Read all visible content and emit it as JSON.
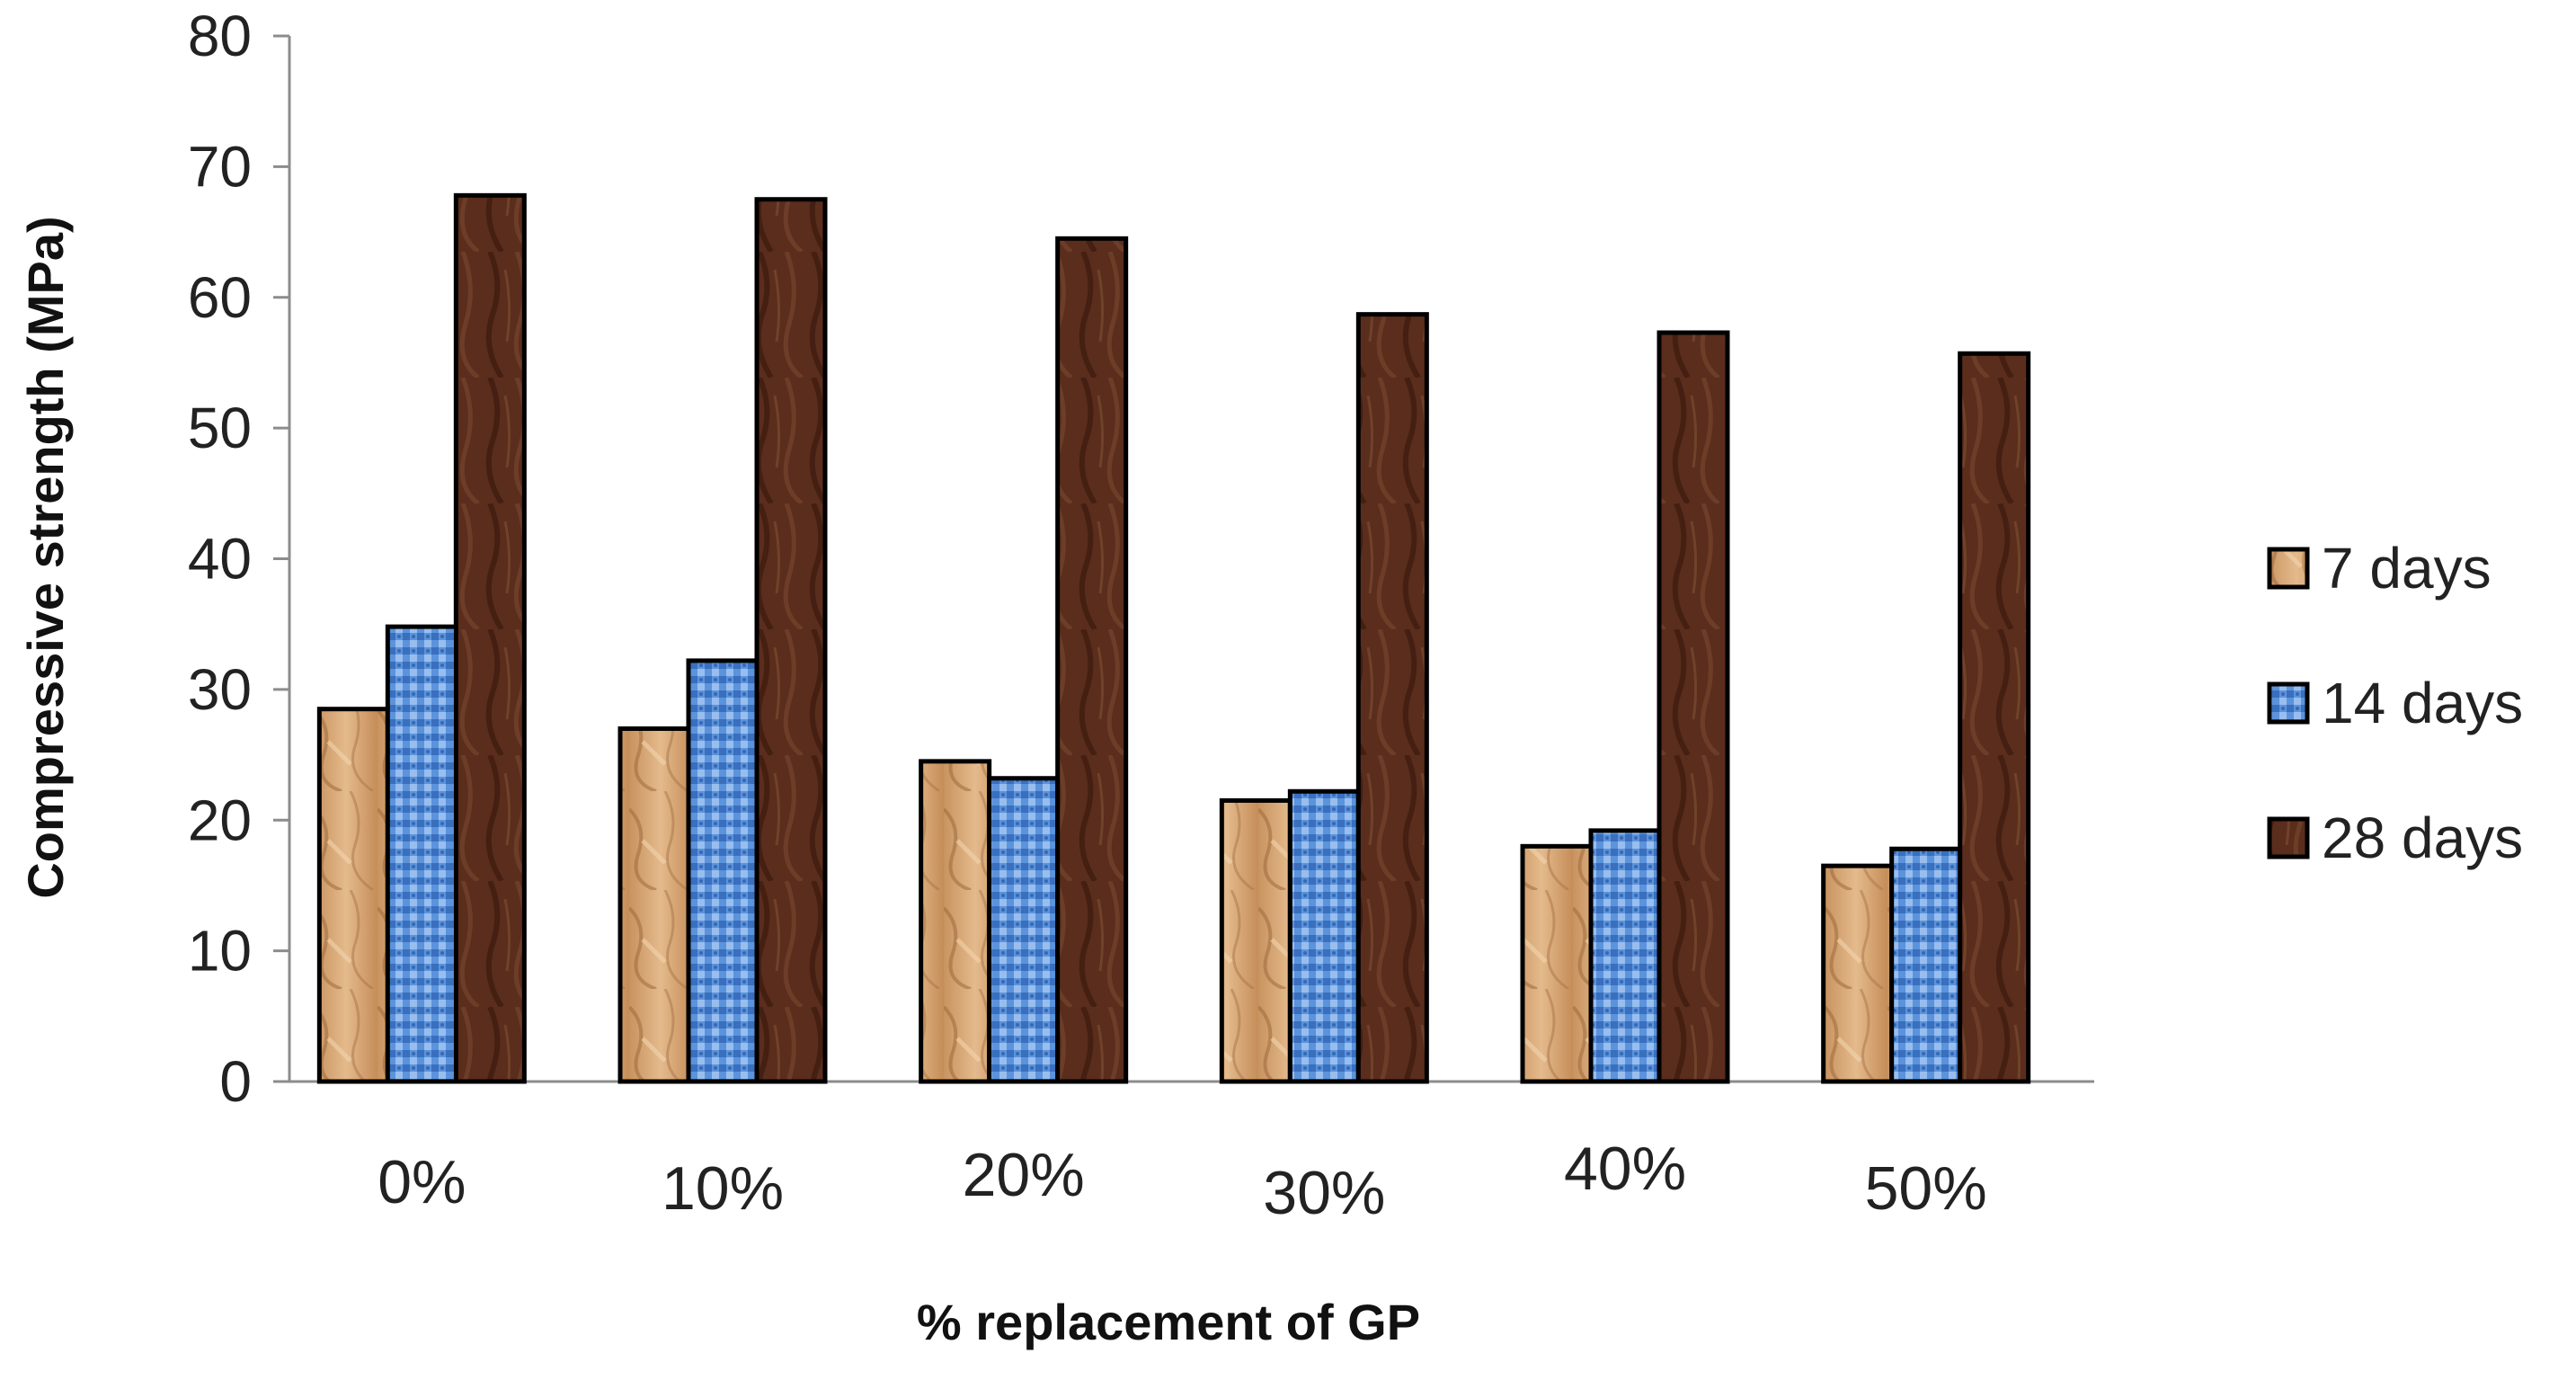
{
  "chart_data": {
    "type": "bar",
    "title": "",
    "xlabel": "% replacement of GP",
    "ylabel": "Compressive strength (MPa)",
    "ylim": [
      0,
      80
    ],
    "yticks": [
      0,
      10,
      20,
      30,
      40,
      50,
      60,
      70,
      80
    ],
    "categories": [
      "0%",
      "10%",
      "20%",
      "30%",
      "40%",
      "50%"
    ],
    "series": [
      {
        "name": "7 days",
        "values": [
          28.5,
          27.0,
          24.5,
          21.5,
          18.0,
          16.5
        ],
        "color": "#D9A876"
      },
      {
        "name": "14 days",
        "values": [
          34.8,
          32.2,
          23.2,
          22.2,
          19.2,
          17.8
        ],
        "color": "#4F86D0"
      },
      {
        "name": "28 days",
        "values": [
          67.8,
          67.5,
          64.5,
          58.7,
          57.3,
          55.7
        ],
        "color": "#5A2D1C"
      }
    ],
    "grid": false,
    "legend": "right"
  }
}
